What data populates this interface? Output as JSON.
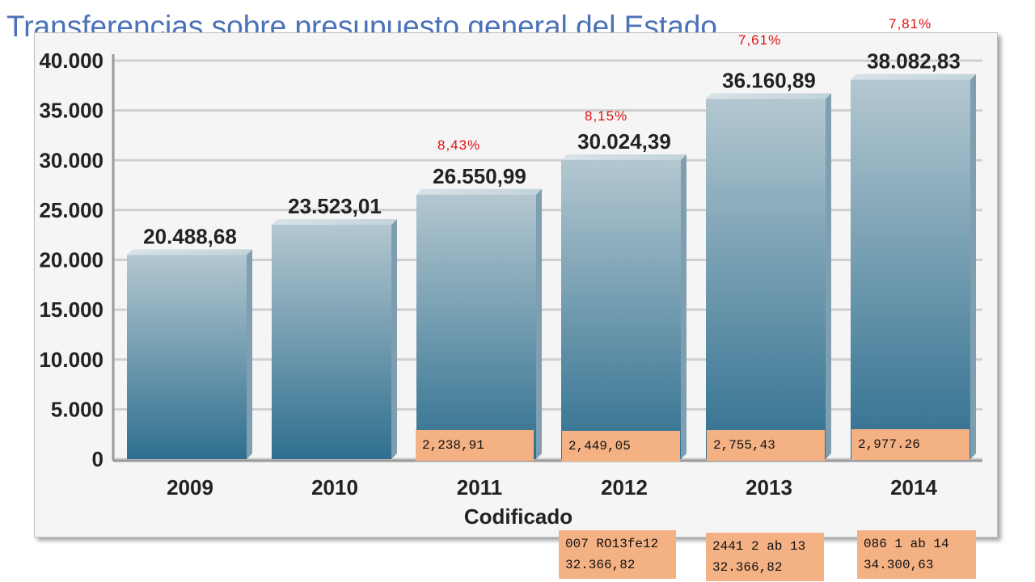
{
  "title": "Transferencias sobre presupuesto general del Estado",
  "chart_data": {
    "type": "bar",
    "categories": [
      "2009",
      "2010",
      "2011",
      "2012",
      "2013",
      "2014"
    ],
    "values": [
      20488.68,
      23523.01,
      26550.99,
      30024.39,
      36160.89,
      38082.83
    ],
    "value_labels": [
      "20.488,68",
      "23.523,01",
      "26.550,99",
      "30.024,39",
      "36.160,89",
      "38.082,83"
    ],
    "xlabel": "Codificado",
    "ylabel": "",
    "ylim": [
      0,
      40000
    ],
    "yticks": [
      0,
      5000,
      10000,
      15000,
      20000,
      25000,
      30000,
      35000,
      40000
    ],
    "ytick_labels": [
      "0",
      "5.000",
      "10.000",
      "15.000",
      "20.000",
      "25.000",
      "30.000",
      "35.000",
      "40.000"
    ],
    "grid": true,
    "colors": {
      "bar_top": "#b3c7d0",
      "bar_bottom": "#2f6f8f",
      "panel_bg": "#f5f5f5",
      "grid": "#cfcfcf",
      "axis_text": "#222222"
    }
  },
  "annotations": {
    "percentages": [
      {
        "year": "2011",
        "text": "8,43%"
      },
      {
        "year": "2012",
        "text": "8,15%"
      },
      {
        "year": "2013",
        "text": "7,61%"
      },
      {
        "year": "2014",
        "text": "7,81%"
      }
    ],
    "inner_boxes": [
      {
        "year": "2011",
        "text": "2,238,91"
      },
      {
        "year": "2012",
        "text": "2,449,05"
      },
      {
        "year": "2013",
        "text": "2,755,43"
      },
      {
        "year": "2014",
        "text": "2,977.26"
      }
    ],
    "bottom_boxes": [
      {
        "year": "2012",
        "line1": "007 RO13fe12",
        "line2": "32.366,82"
      },
      {
        "year": "2013",
        "line1": "2441 2 ab 13",
        "line2": "32.366,82"
      },
      {
        "year": "2014",
        "line1": "086 1 ab 14",
        "line2": "34.300,63"
      }
    ],
    "colors": {
      "percent_text": "#e01010",
      "box_bg": "#f4b183"
    }
  }
}
